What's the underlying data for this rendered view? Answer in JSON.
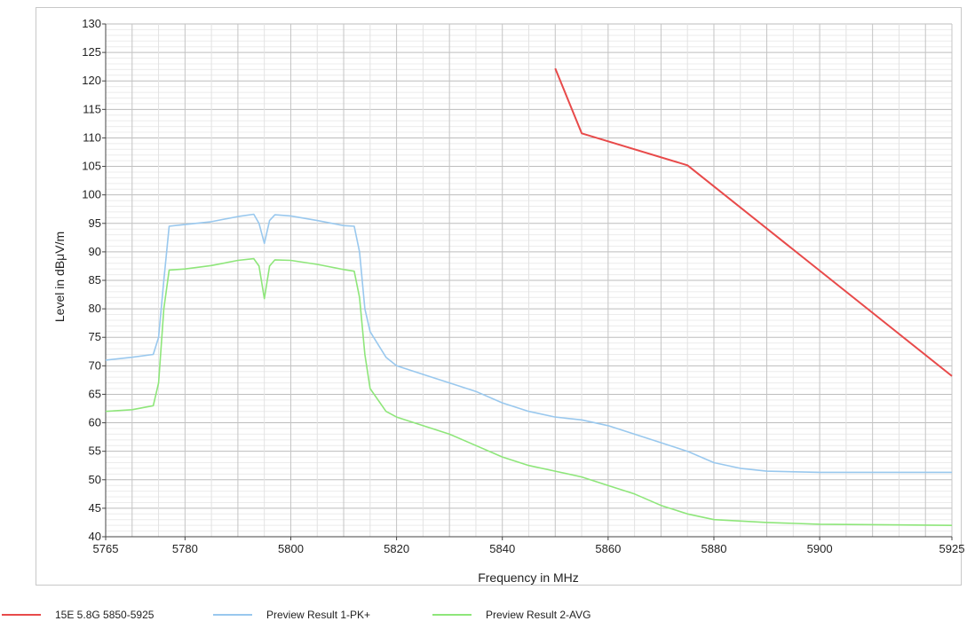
{
  "chart_data": {
    "type": "line",
    "xlabel": "Frequency in MHz",
    "ylabel": "Level in dBμV/m",
    "xlim": [
      5765,
      5925
    ],
    "ylim": [
      40,
      130
    ],
    "x_ticks": [
      5765,
      5780,
      5800,
      5820,
      5840,
      5860,
      5880,
      5900,
      5925
    ],
    "y_ticks": [
      40,
      45,
      50,
      55,
      60,
      65,
      70,
      75,
      80,
      85,
      90,
      95,
      100,
      105,
      110,
      115,
      120,
      125,
      130
    ],
    "grid": true,
    "legend_position": "bottom",
    "series": [
      {
        "name": "15E 5.8G 5850-5925",
        "color": "#e84a4a",
        "points": [
          [
            5850,
            122.2
          ],
          [
            5855,
            110.8
          ],
          [
            5875,
            105.2
          ],
          [
            5925,
            68.2
          ]
        ]
      },
      {
        "name": "Preview Result 1-PK+",
        "color": "#99c8ee",
        "points": [
          [
            5765,
            71
          ],
          [
            5770,
            71.5
          ],
          [
            5774,
            72
          ],
          [
            5775,
            75
          ],
          [
            5776,
            85
          ],
          [
            5777,
            94.5
          ],
          [
            5780,
            94.8
          ],
          [
            5785,
            95.3
          ],
          [
            5790,
            96.2
          ],
          [
            5793,
            96.6
          ],
          [
            5794,
            95
          ],
          [
            5795,
            91.5
          ],
          [
            5796,
            95.5
          ],
          [
            5797,
            96.5
          ],
          [
            5800,
            96.3
          ],
          [
            5805,
            95.5
          ],
          [
            5810,
            94.6
          ],
          [
            5812,
            94.5
          ],
          [
            5813,
            90
          ],
          [
            5814,
            80
          ],
          [
            5815,
            76
          ],
          [
            5818,
            71.5
          ],
          [
            5820,
            70
          ],
          [
            5825,
            68.5
          ],
          [
            5830,
            67
          ],
          [
            5835,
            65.5
          ],
          [
            5840,
            63.5
          ],
          [
            5845,
            62
          ],
          [
            5850,
            61
          ],
          [
            5855,
            60.5
          ],
          [
            5860,
            59.5
          ],
          [
            5865,
            58
          ],
          [
            5870,
            56.5
          ],
          [
            5875,
            55
          ],
          [
            5880,
            53
          ],
          [
            5885,
            52
          ],
          [
            5890,
            51.5
          ],
          [
            5900,
            51.3
          ],
          [
            5910,
            51.3
          ],
          [
            5925,
            51.3
          ]
        ]
      },
      {
        "name": "Preview Result 2-AVG",
        "color": "#8ee67a",
        "points": [
          [
            5765,
            62
          ],
          [
            5770,
            62.3
          ],
          [
            5774,
            63
          ],
          [
            5775,
            67
          ],
          [
            5776,
            80
          ],
          [
            5777,
            86.8
          ],
          [
            5780,
            87
          ],
          [
            5785,
            87.6
          ],
          [
            5790,
            88.5
          ],
          [
            5793,
            88.8
          ],
          [
            5794,
            87.5
          ],
          [
            5795,
            81.8
          ],
          [
            5796,
            87.5
          ],
          [
            5797,
            88.6
          ],
          [
            5800,
            88.5
          ],
          [
            5805,
            87.8
          ],
          [
            5810,
            86.9
          ],
          [
            5812,
            86.6
          ],
          [
            5813,
            82
          ],
          [
            5814,
            72
          ],
          [
            5815,
            66
          ],
          [
            5818,
            62
          ],
          [
            5820,
            61
          ],
          [
            5825,
            59.5
          ],
          [
            5830,
            58
          ],
          [
            5835,
            56
          ],
          [
            5840,
            54
          ],
          [
            5845,
            52.5
          ],
          [
            5850,
            51.5
          ],
          [
            5855,
            50.5
          ],
          [
            5860,
            49
          ],
          [
            5865,
            47.5
          ],
          [
            5870,
            45.5
          ],
          [
            5875,
            44
          ],
          [
            5880,
            43
          ],
          [
            5890,
            42.5
          ],
          [
            5900,
            42.2
          ],
          [
            5925,
            42
          ]
        ]
      }
    ]
  }
}
